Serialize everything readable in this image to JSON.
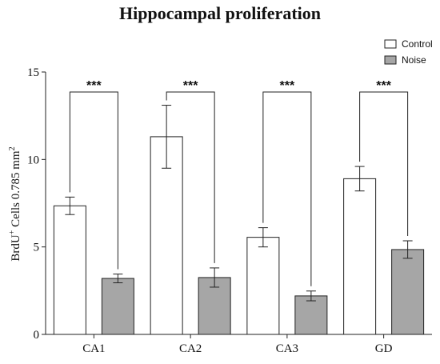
{
  "chart_data": {
    "type": "bar",
    "title": "Hippocampal proliferation",
    "ylabel_parts": {
      "base": "BrdU",
      "sup": "+",
      "mid": " Cells 0.785 mm",
      "sup2": "2"
    },
    "xlabel": "",
    "ylim": [
      0,
      15
    ],
    "yticks": [
      "0",
      "5",
      "10",
      "15"
    ],
    "categories": [
      "CA1",
      "CA2",
      "CA3",
      "GD"
    ],
    "series": [
      {
        "name": "Control",
        "color": "#ffffff",
        "values": [
          7.35,
          11.3,
          5.55,
          8.9
        ],
        "errors": [
          0.5,
          1.8,
          0.55,
          0.7
        ]
      },
      {
        "name": "Noise",
        "color": "#a6a6a6",
        "values": [
          3.2,
          3.25,
          2.2,
          4.85
        ],
        "errors": [
          0.25,
          0.55,
          0.28,
          0.5
        ]
      }
    ],
    "significance": [
      "***",
      "***",
      "***",
      "***"
    ],
    "legend_position": "top-right",
    "grid": false
  }
}
